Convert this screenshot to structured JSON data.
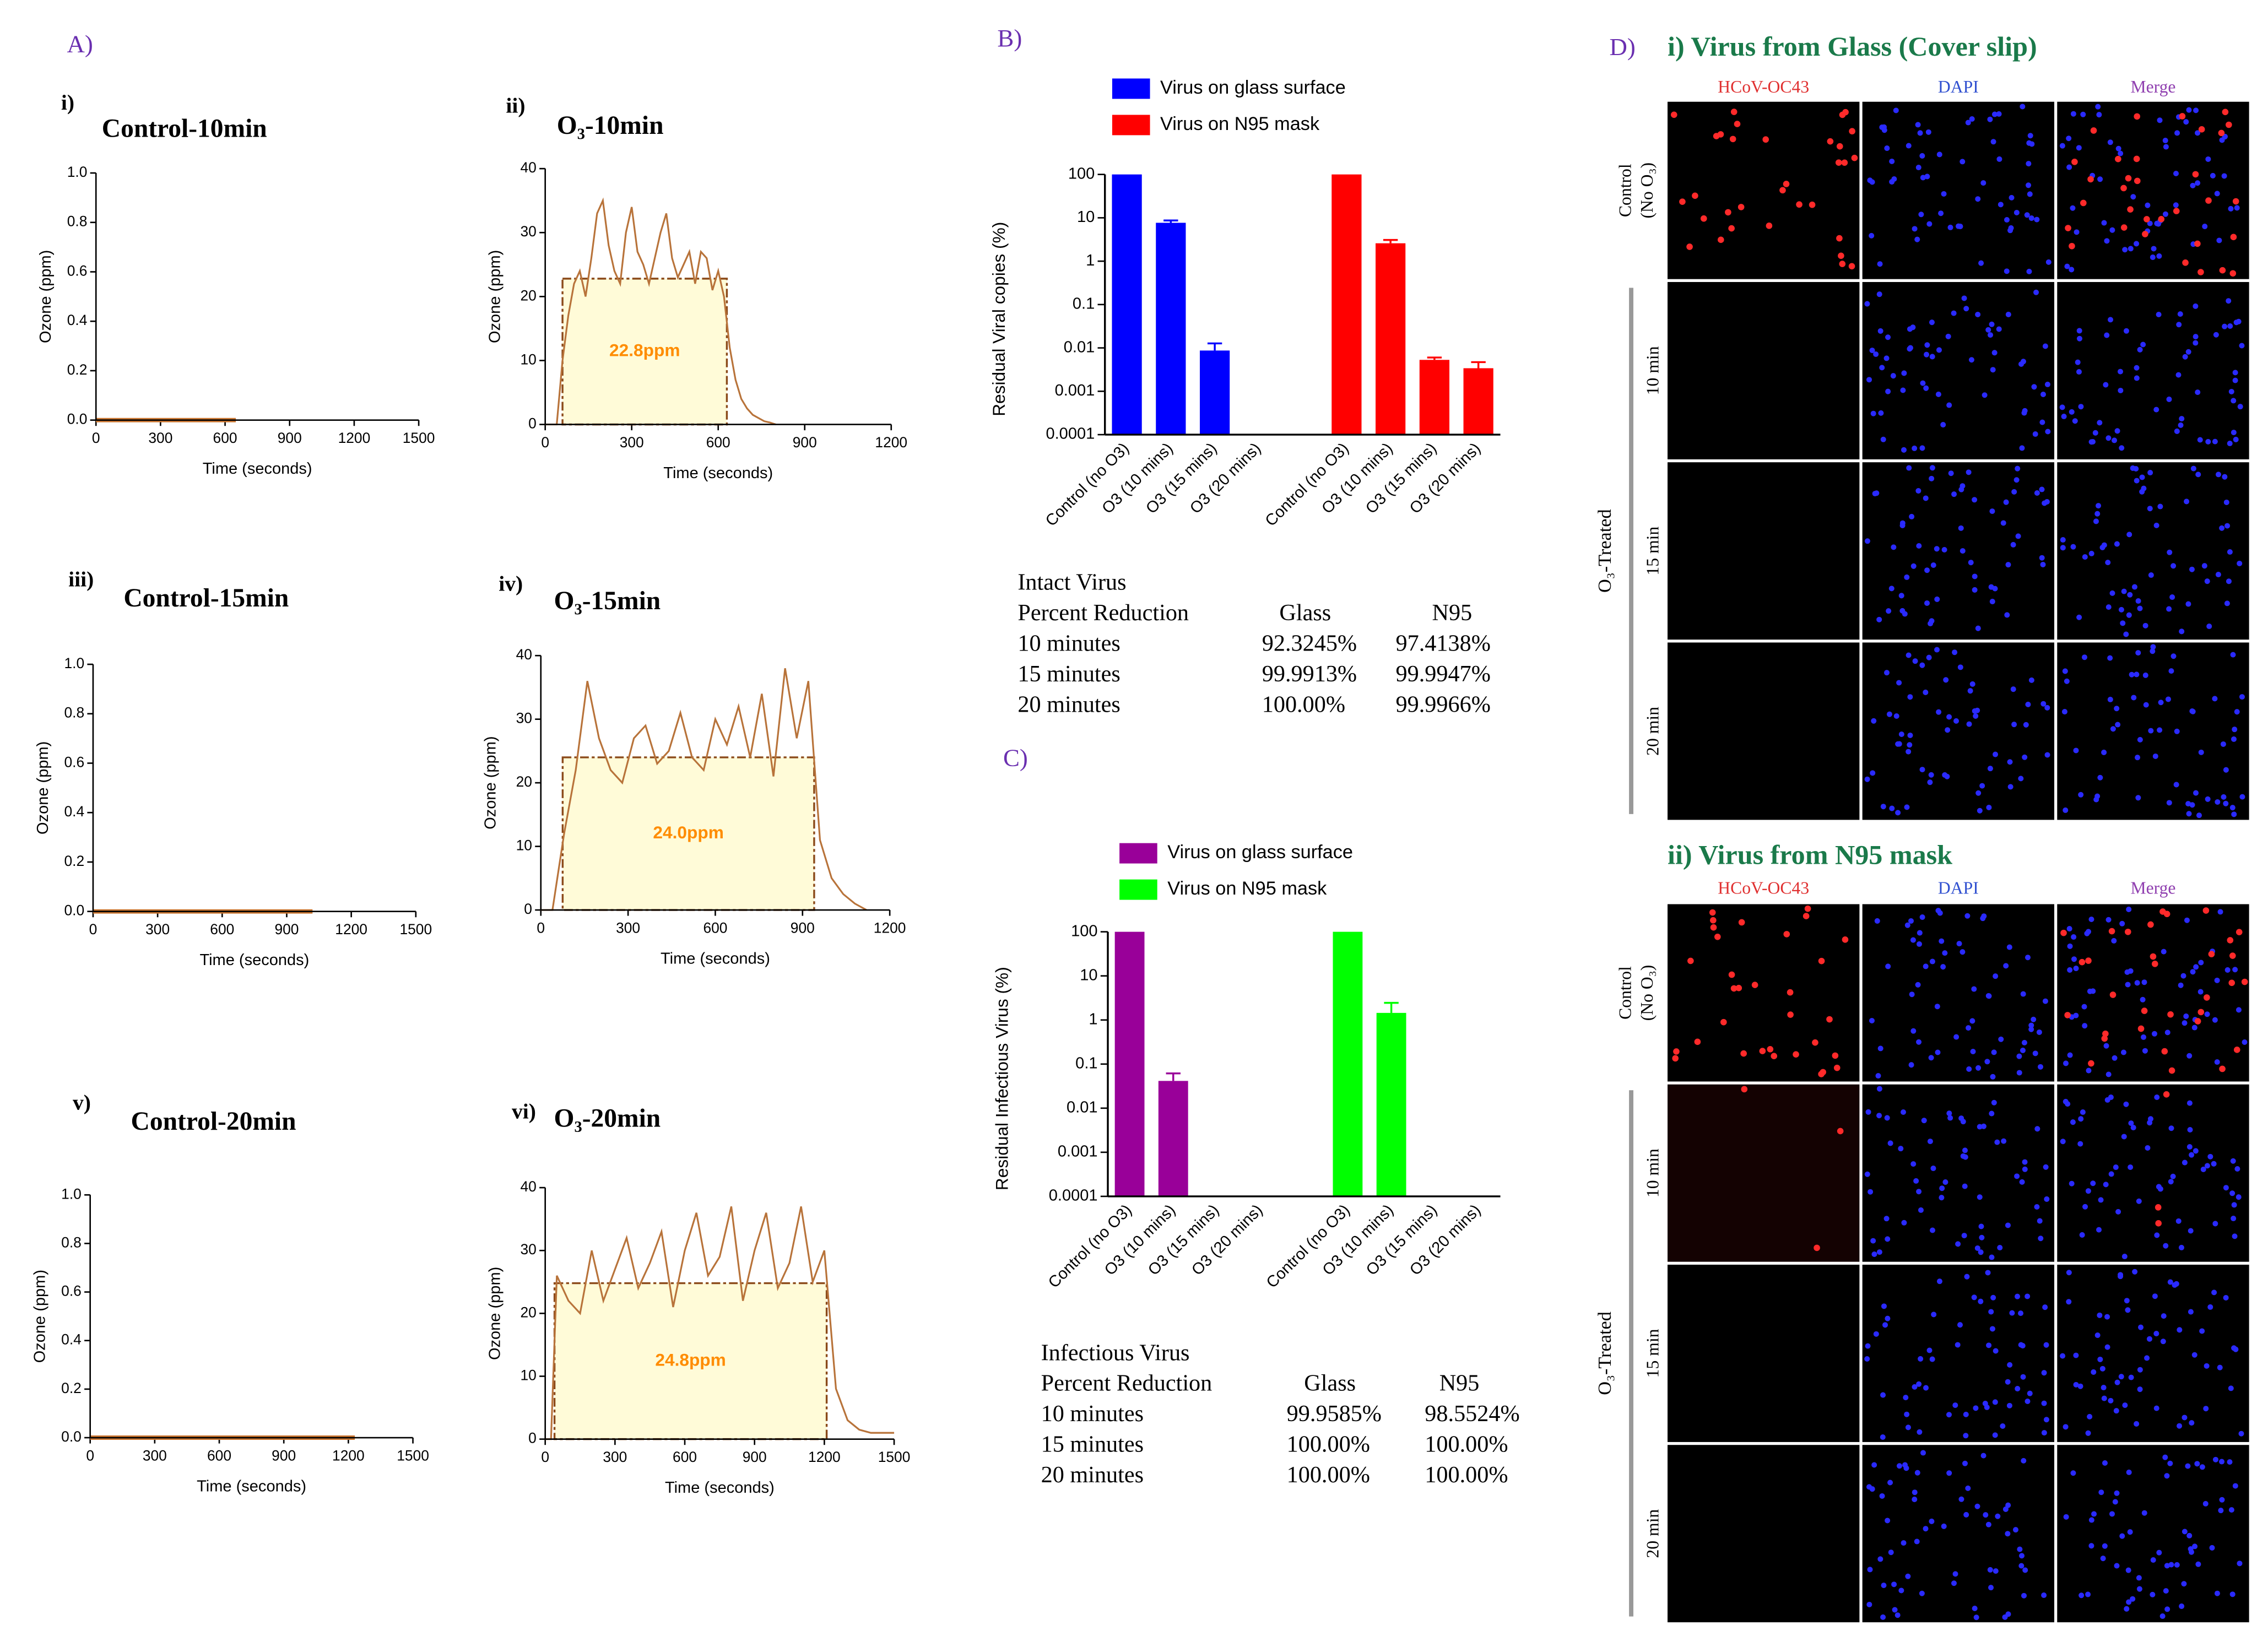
{
  "panels": {
    "a": "A)",
    "b": "B)",
    "c": "C)",
    "d": "D)"
  },
  "chart_data": [
    {
      "type": "line",
      "panel": "i)",
      "title": "Control-10min",
      "x_label": "Time (seconds)",
      "y_label": "Ozone (ppm)",
      "x": [
        0,
        650
      ],
      "values": [
        0,
        0
      ],
      "color": "#c8742f",
      "xlim": [
        0,
        1500
      ],
      "xticks": [
        0,
        300,
        600,
        900,
        1200,
        1500
      ],
      "ylim": [
        0,
        1
      ],
      "yticks": [
        {
          "value": 0,
          "label": "0.0"
        },
        0.2,
        0.4,
        0.6,
        0.8,
        {
          "value": 1,
          "label": "1.0"
        }
      ]
    },
    {
      "type": "line",
      "panel": "ii)",
      "title": "O₃-10min",
      "x_label": "Time (seconds)",
      "y_label": "Ozone (ppm)",
      "x": [
        0,
        40,
        60,
        80,
        100,
        120,
        140,
        160,
        180,
        200,
        220,
        240,
        260,
        280,
        300,
        320,
        340,
        360,
        380,
        400,
        420,
        440,
        460,
        480,
        500,
        520,
        540,
        560,
        580,
        600,
        620,
        640,
        660,
        680,
        700,
        720,
        740,
        760,
        780,
        800
      ],
      "values": [
        0,
        0,
        10,
        17,
        22,
        24,
        20,
        26,
        33,
        35,
        28,
        24,
        22,
        30,
        34,
        27,
        25,
        22,
        26,
        30,
        33,
        26,
        23,
        25,
        27,
        22,
        27,
        26,
        21,
        24,
        20,
        12,
        7,
        4,
        2.5,
        1.5,
        1,
        0.5,
        0.3,
        0
      ],
      "color": "#b8733a",
      "mean": 22.8,
      "mean_label": "22.8ppm",
      "treatment_window": [
        60,
        630
      ],
      "xlim": [
        0,
        1200
      ],
      "xticks": [
        0,
        300,
        600,
        900,
        1200
      ],
      "ylim": [
        0,
        40
      ],
      "yticks": [
        0,
        10,
        20,
        30,
        40
      ]
    },
    {
      "type": "line",
      "panel": "iii)",
      "title": "Control-15min",
      "x_label": "Time (seconds)",
      "y_label": "Ozone (ppm)",
      "x": [
        0,
        1020
      ],
      "values": [
        0,
        0
      ],
      "color": "#c8742f",
      "xlim": [
        0,
        1500
      ],
      "xticks": [
        0,
        300,
        600,
        900,
        1200,
        1500
      ],
      "ylim": [
        0,
        1
      ],
      "yticks": [
        {
          "value": 0,
          "label": "0.0"
        },
        0.2,
        0.4,
        0.6,
        0.8,
        {
          "value": 1,
          "label": "1.0"
        }
      ]
    },
    {
      "type": "line",
      "panel": "iv)",
      "title": "O₃-15min",
      "x_label": "Time (seconds)",
      "y_label": "Ozone (ppm)",
      "x": [
        0,
        40,
        80,
        120,
        160,
        200,
        240,
        280,
        320,
        360,
        400,
        440,
        480,
        520,
        560,
        600,
        640,
        680,
        720,
        760,
        800,
        840,
        880,
        920,
        960,
        1000,
        1040,
        1080,
        1120
      ],
      "values": [
        0,
        0,
        12,
        22,
        36,
        27,
        22,
        20,
        27,
        29,
        23,
        25,
        31,
        24,
        22,
        30,
        26,
        32,
        24,
        34,
        21,
        38,
        27,
        36,
        11,
        5,
        2.5,
        1,
        0
      ],
      "color": "#b8733a",
      "mean": 24.0,
      "mean_label": "24.0ppm",
      "treatment_window": [
        75,
        940
      ],
      "xlim": [
        0,
        1200
      ],
      "xticks": [
        0,
        300,
        600,
        900,
        1200
      ],
      "ylim": [
        0,
        40
      ],
      "yticks": [
        0,
        10,
        20,
        30,
        40
      ]
    },
    {
      "type": "line",
      "panel": "v)",
      "title": "Control-20min",
      "x_label": "Time (seconds)",
      "y_label": "Ozone (ppm)",
      "x": [
        0,
        1230
      ],
      "values": [
        0,
        0
      ],
      "color": "#c8742f",
      "xlim": [
        0,
        1500
      ],
      "xticks": [
        0,
        300,
        600,
        900,
        1200,
        1500
      ],
      "ylim": [
        0,
        1
      ],
      "yticks": [
        {
          "value": 0,
          "label": "0.0"
        },
        0.2,
        0.4,
        0.6,
        0.8,
        {
          "value": 1,
          "label": "1.0"
        }
      ]
    },
    {
      "type": "line",
      "panel": "vi)",
      "title": "O₃-20min",
      "x_label": "Time (seconds)",
      "y_label": "Ozone (ppm)",
      "x": [
        0,
        25,
        50,
        100,
        150,
        200,
        250,
        300,
        350,
        400,
        450,
        500,
        550,
        600,
        650,
        700,
        750,
        800,
        850,
        900,
        950,
        1000,
        1050,
        1100,
        1150,
        1200,
        1250,
        1300,
        1350,
        1400,
        1450,
        1500
      ],
      "values": [
        0,
        0,
        26,
        22,
        20,
        30,
        22,
        27,
        32,
        24,
        28,
        33,
        21,
        30,
        36,
        26,
        29,
        37,
        22,
        30,
        36,
        24,
        28,
        37,
        25,
        30,
        8,
        3,
        1.5,
        1,
        1,
        1
      ],
      "color": "#b8733a",
      "mean": 24.8,
      "mean_label": "24.8ppm",
      "treatment_window": [
        40,
        1210
      ],
      "xlim": [
        0,
        1500
      ],
      "xticks": [
        0,
        300,
        600,
        900,
        1200,
        1500
      ],
      "ylim": [
        0,
        40
      ],
      "yticks": [
        0,
        10,
        20,
        30,
        40
      ]
    },
    {
      "type": "bar",
      "log_scale": true,
      "y_label": "Residual Viral copies (%)",
      "categories": [
        "Control (no O3)",
        "O3 (10 mins)",
        "O3 (15 mins)",
        "O3 (20 mins)",
        "Control (no O3)",
        "O3 (10 mins)",
        "O3 (15 mins)",
        "O3 (20 mins)"
      ],
      "series": [
        {
          "name": "Virus on glass surface",
          "color": "#0000ff",
          "values": [
            100,
            7.6755,
            0.0087,
            0,
            null,
            null,
            null,
            null
          ],
          "errors": [
            null,
            1.0,
            0.004,
            null,
            null,
            null,
            null,
            null
          ]
        },
        {
          "name": "Virus on N95 mask",
          "color": "#ff0000",
          "values": [
            null,
            null,
            null,
            null,
            100,
            2.5862,
            0.0053,
            0.0034
          ],
          "errors": [
            null,
            null,
            null,
            null,
            null,
            0.5,
            0.0007,
            0.0013
          ]
        }
      ],
      "ylim": [
        0.0001,
        100
      ],
      "yticks": [
        0.0001,
        0.001,
        0.01,
        0.1,
        1,
        10,
        100
      ]
    },
    {
      "type": "bar",
      "log_scale": true,
      "y_label": "Residual Infectious Virus (%)",
      "categories": [
        "Control (no O3)",
        "O3 (10 mins)",
        "O3 (15 mins)",
        "O3 (20 mins)",
        "Control (no O3)",
        "O3 (10 mins)",
        "O3 (15 mins)",
        "O3 (20 mins)"
      ],
      "series": [
        {
          "name": "Virus on glass surface",
          "color": "#990099",
          "values": [
            100,
            0.0415,
            0,
            0,
            null,
            null,
            null,
            null
          ],
          "errors": [
            null,
            0.02,
            null,
            null,
            null,
            null,
            null,
            null
          ]
        },
        {
          "name": "Virus on N95 mask",
          "color": "#00ff00",
          "values": [
            null,
            null,
            null,
            null,
            100,
            1.4476,
            0,
            0
          ],
          "errors": [
            null,
            null,
            null,
            null,
            null,
            1.0,
            null,
            null
          ]
        }
      ],
      "ylim": [
        0.0001,
        100
      ],
      "yticks": [
        0.0001,
        0.001,
        0.01,
        0.1,
        1,
        10,
        100
      ]
    }
  ],
  "tables": [
    {
      "title": "Intact Virus",
      "header": [
        "Percent Reduction",
        "Glass",
        "N95"
      ],
      "rows": [
        [
          "10 minutes",
          "92.3245%",
          "97.4138%"
        ],
        [
          "15 minutes",
          "99.9913%",
          "99.9947%"
        ],
        [
          "20 minutes",
          "100.00%",
          "99.9966%"
        ]
      ]
    },
    {
      "title": "Infectious Virus",
      "header": [
        "Percent Reduction",
        "Glass",
        "N95"
      ],
      "rows": [
        [
          "10 minutes",
          "99.9585%",
          "98.5524%"
        ],
        [
          "15 minutes",
          "100.00%",
          "100.00%"
        ],
        [
          "20 minutes",
          "100.00%",
          "100.00%"
        ]
      ]
    }
  ],
  "micrographs": [
    {
      "title": "i) Virus from Glass (Cover slip)",
      "columns": [
        "HCoV-OC43",
        "DAPI",
        "Merge"
      ],
      "control_label": [
        "Control",
        "(No O₃)"
      ],
      "treated_label": "O₃-Treated",
      "rows": [
        "10 min",
        "15 min",
        "20 min"
      ]
    },
    {
      "title": "ii) Virus from N95 mask",
      "columns": [
        "HCoV-OC43",
        "DAPI",
        "Merge"
      ],
      "control_label": [
        "Control",
        "(No O₃)"
      ],
      "treated_label": "O₃-Treated",
      "rows": [
        "10 min",
        "15 min",
        "20 min"
      ]
    }
  ]
}
